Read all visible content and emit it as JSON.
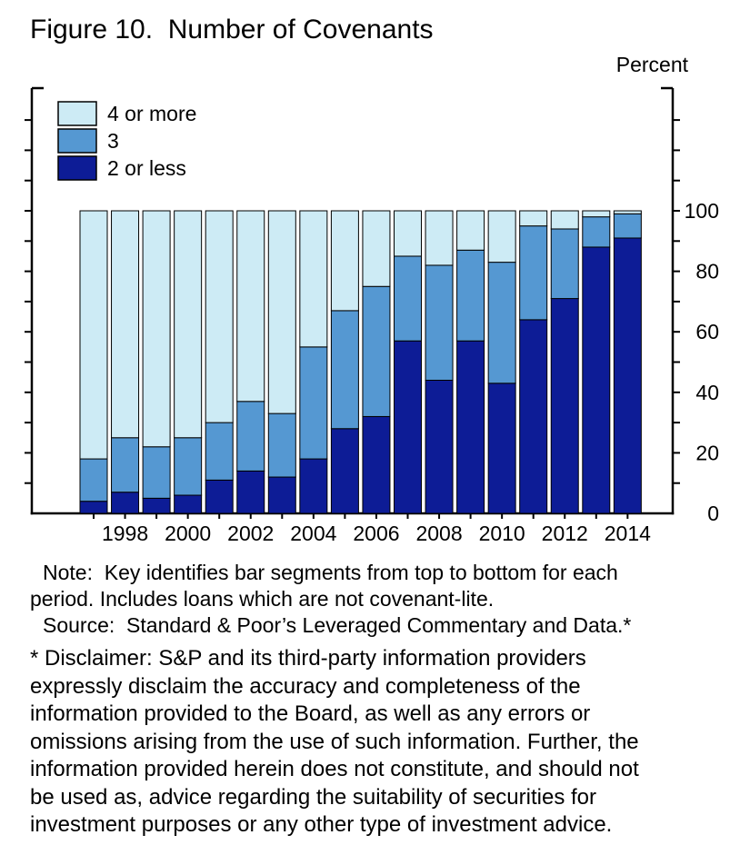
{
  "title": "Figure 10.  Number of Covenants",
  "axis_unit_label": "Percent",
  "note": {
    "line1": "Note:  Key identifies bar segments from top to bottom for each",
    "line2": "period. Includes loans which are not covenant-lite.",
    "source": "Source:  Standard & Poor’s Leveraged Commentary and Data.*"
  },
  "disclaimer_lines": [
    "* Disclaimer: S&P and its third-party information providers",
    "expressly disclaim the accuracy and completeness of the",
    "information provided to the Board, as well as any errors or",
    "omissions arising from the use of such information. Further, the",
    "information provided herein does not constitute, and should not",
    "be used as, advice regarding the suitability of securities for",
    "investment purposes or any other type of investment advice."
  ],
  "colors": {
    "four_or_more": "#cdebf5",
    "three": "#5598d2",
    "two_or_less": "#0d1c96",
    "axis": "#000000",
    "background": "#ffffff"
  },
  "chart_data": {
    "type": "bar",
    "stacked": true,
    "title": "Figure 10. Number of Covenants",
    "xlabel": "",
    "ylabel": "Percent",
    "ylim": [
      0,
      100
    ],
    "yticks_labeled": [
      0,
      20,
      40,
      60,
      80,
      100
    ],
    "ytick_minor_step": 10,
    "grid": false,
    "legend_position": "top-left",
    "legend": [
      {
        "label": "4 or more",
        "color": "#cdebf5"
      },
      {
        "label": "3",
        "color": "#5598d2"
      },
      {
        "label": "2 or less",
        "color": "#0d1c96"
      }
    ],
    "categories": [
      "1997",
      "1998",
      "1999",
      "2000",
      "2001",
      "2002",
      "2003",
      "2004",
      "2005",
      "2006",
      "2007",
      "2008",
      "2009",
      "2010",
      "2011",
      "2012",
      "2013",
      "2014"
    ],
    "xtick_labels": [
      "1998",
      "2000",
      "2002",
      "2004",
      "2006",
      "2008",
      "2010",
      "2012",
      "2014"
    ],
    "series": [
      {
        "name": "2 or less",
        "values": [
          4,
          7,
          5,
          6,
          11,
          14,
          12,
          18,
          28,
          32,
          57,
          44,
          57,
          43,
          64,
          71,
          88,
          91
        ]
      },
      {
        "name": "3",
        "values": [
          14,
          18,
          17,
          19,
          19,
          23,
          21,
          37,
          39,
          43,
          28,
          38,
          30,
          40,
          31,
          23,
          10,
          8
        ]
      },
      {
        "name": "4 or more",
        "values": [
          82,
          75,
          78,
          75,
          70,
          63,
          67,
          45,
          33,
          25,
          15,
          18,
          13,
          17,
          5,
          6,
          2,
          1
        ]
      }
    ]
  }
}
